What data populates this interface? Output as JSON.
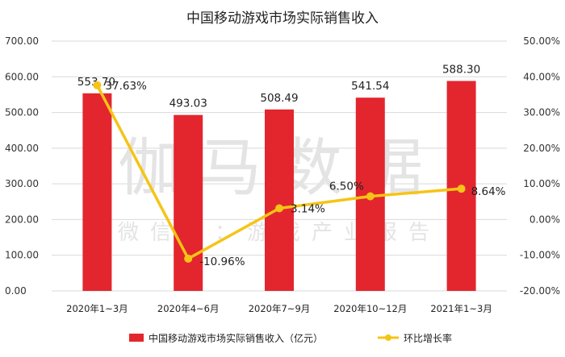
{
  "chart_data": {
    "type": "bar",
    "title": "中国移动游戏市场实际销售收入",
    "categories": [
      "2020年1~3月",
      "2020年4~6月",
      "2020年7~9月",
      "2020年10~12月",
      "2021年1~3月"
    ],
    "series": [
      {
        "name": "中国移动游戏市场实际销售收入（亿元）",
        "type": "bar",
        "axis": "left",
        "color": "#e3262e",
        "values": [
          553.7,
          493.03,
          508.49,
          541.54,
          588.3
        ],
        "labels": [
          "553.70",
          "493.03",
          "508.49",
          "541.54",
          "588.30"
        ]
      },
      {
        "name": "环比增长率",
        "type": "line",
        "axis": "right",
        "color": "#f5c416",
        "values": [
          37.63,
          -10.96,
          3.14,
          6.5,
          8.64
        ],
        "labels": [
          "37.63%",
          "-10.96%",
          "3.14%",
          "6.50%",
          "8.64%"
        ]
      }
    ],
    "left_axis": {
      "ylim": [
        0,
        700
      ],
      "ticks": [
        "0.00",
        "100.00",
        "200.00",
        "300.00",
        "400.00",
        "500.00",
        "600.00",
        "700.00"
      ]
    },
    "right_axis": {
      "ylim": [
        -20,
        50
      ],
      "ticks": [
        "-20.00%",
        "-10.00%",
        "0.00%",
        "10.00%",
        "20.00%",
        "30.00%",
        "40.00%",
        "50.00%"
      ]
    },
    "grid": true,
    "legend_position": "bottom"
  },
  "watermark": {
    "main": "伽马数据",
    "sub": "微信号：游戏产业报告"
  }
}
